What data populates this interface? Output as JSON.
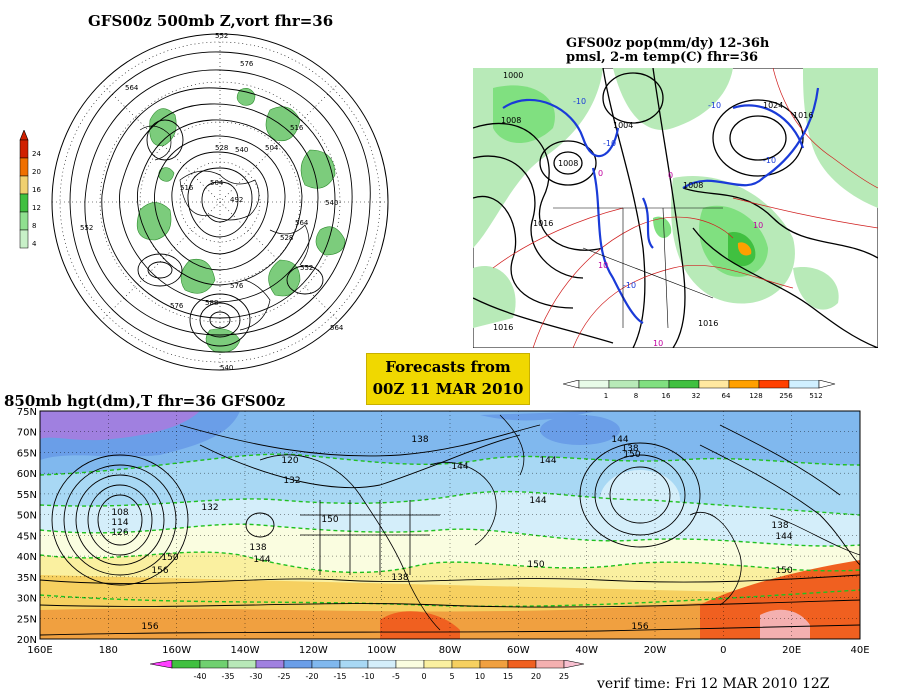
{
  "panels": {
    "vort500": {
      "title": "GFS00z   500mb  Z,vort     fhr=36",
      "colorbar": {
        "ticks": [
          "24",
          "20",
          "16",
          "12",
          "8",
          "4"
        ],
        "colors": [
          "#d02000",
          "#f07000",
          "#f0d070",
          "#40c040",
          "#90e090",
          "#c8f0c8"
        ]
      },
      "contour_labels": [
        "552",
        "564",
        "576",
        "528",
        "540",
        "516",
        "504",
        "492",
        "504",
        "516",
        "528",
        "540",
        "552",
        "564",
        "576",
        "588",
        "552",
        "576",
        "564",
        "540"
      ]
    },
    "precip": {
      "title_line1": "GFS00z pop(mm/dy) 12-36h",
      "title_line2": "pmsl, 2-m temp(C)  fhr=36",
      "colorbar": {
        "ticks": [
          "1",
          "8",
          "16",
          "32",
          "64",
          "128",
          "256",
          "512"
        ],
        "colors": [
          "#e8fbe8",
          "#b8eab8",
          "#80e080",
          "#40c040",
          "#ffe8a0",
          "#ffa000",
          "#ff4000",
          "#d0f0ff"
        ]
      },
      "isobar_labels": [
        "1008",
        "1008",
        "1004",
        "1000",
        "1024",
        "1016",
        "1008",
        "1016",
        "1016",
        "1016"
      ],
      "temp_labels": [
        "-10",
        "-10",
        "-10",
        "-10",
        "-10",
        "0",
        "0",
        "10",
        "10",
        "10"
      ]
    },
    "h850": {
      "title": "850mb hgt(dm),T   fhr=36  GFS00z",
      "lat_labels": [
        "75N",
        "70N",
        "65N",
        "60N",
        "55N",
        "50N",
        "45N",
        "40N",
        "35N",
        "30N",
        "25N",
        "20N"
      ],
      "lon_labels": [
        "160E",
        "180",
        "160W",
        "140W",
        "120W",
        "100W",
        "80W",
        "60W",
        "40W",
        "20W",
        "0",
        "20E",
        "40E"
      ],
      "height_labels": [
        "108",
        "114",
        "126",
        "132",
        "150",
        "156",
        "156",
        "120",
        "132",
        "138",
        "144",
        "150",
        "138",
        "144",
        "144",
        "144",
        "138",
        "150",
        "144",
        "150",
        "138",
        "144",
        "150",
        "156",
        "138"
      ],
      "colorbar": {
        "ticks": [
          "-40",
          "-35",
          "-30",
          "-25",
          "-20",
          "-15",
          "-10",
          "-5",
          "0",
          "5",
          "10",
          "15",
          "20",
          "25"
        ],
        "colors": [
          "#40c040",
          "#70d070",
          "#b8e8b8",
          "#a080e0",
          "#6a9ee8",
          "#80b8ee",
          "#a8d8f4",
          "#d4eefa",
          "#fafde0",
          "#faf0a0",
          "#f6d060",
          "#f0a040",
          "#f06020",
          "#f4b0b0"
        ]
      }
    }
  },
  "forecast_box": {
    "line1": "Forecasts from",
    "line2": "00Z 11 MAR 2010"
  },
  "verif_time": "verif time: Fri 12 MAR 2010 12Z"
}
